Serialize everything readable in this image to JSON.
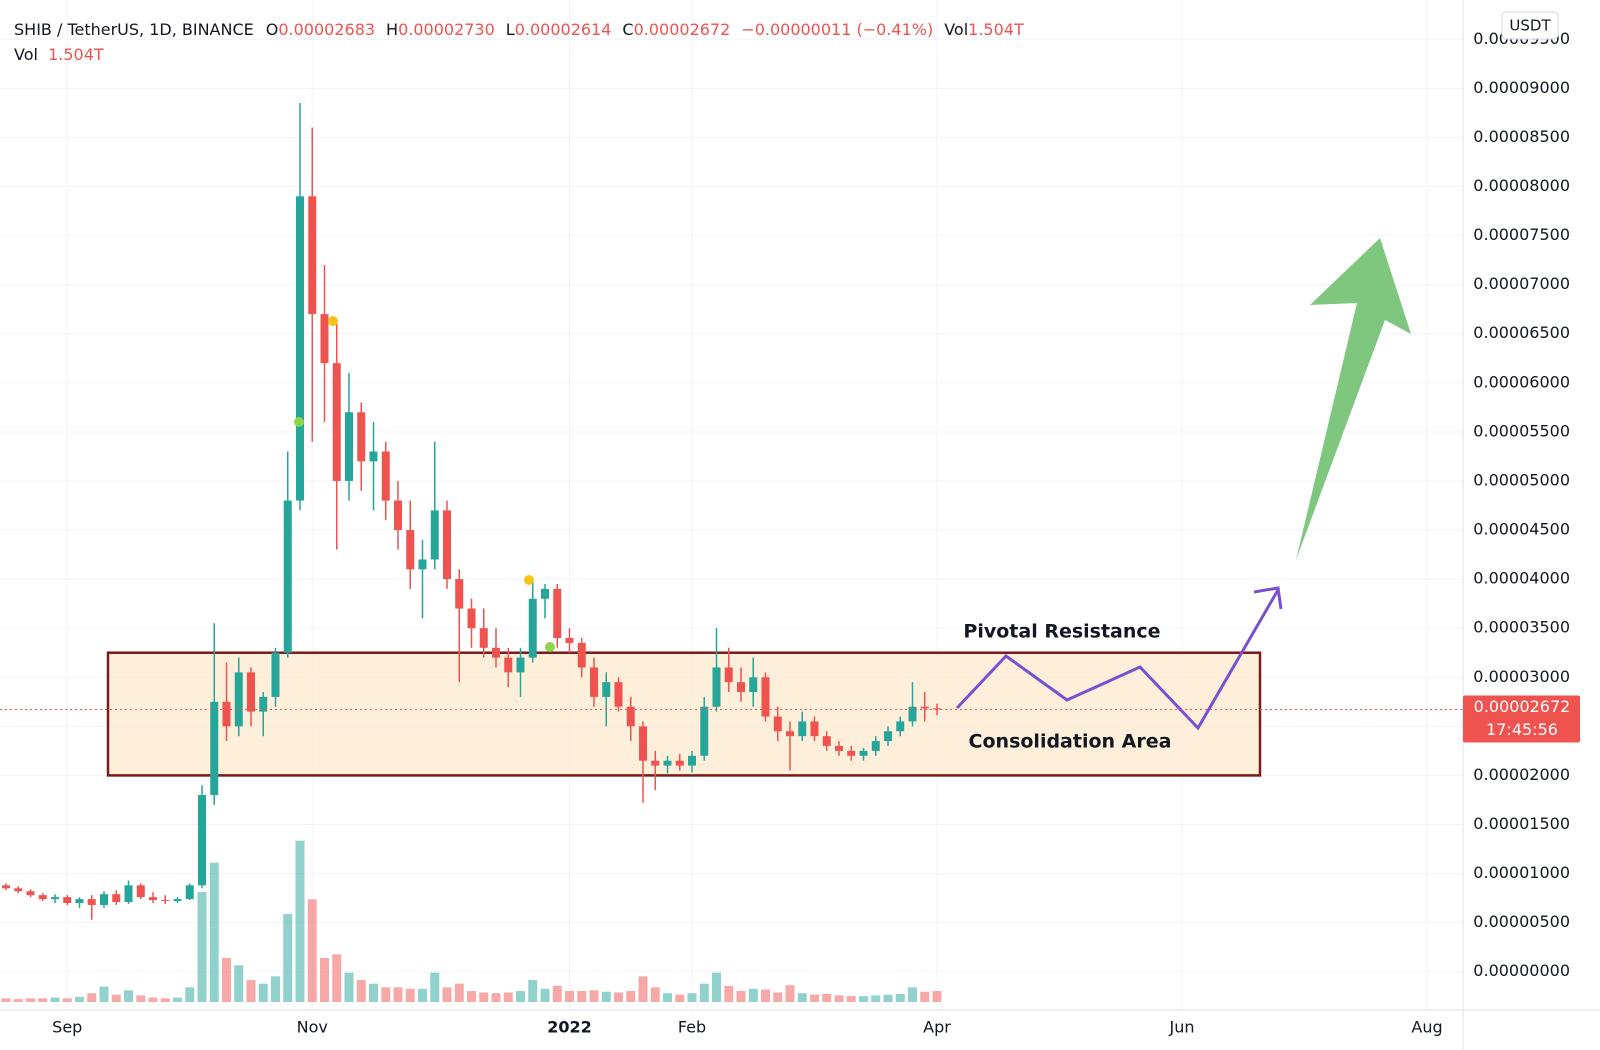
{
  "header": {
    "symbol": "SHIB / TetherUS, 1D, BINANCE",
    "fields": [
      {
        "label": "O",
        "value": "0.00002683"
      },
      {
        "label": "H",
        "value": "0.00002730"
      },
      {
        "label": "L",
        "value": "0.00002614"
      },
      {
        "label": "C",
        "value": "0.00002672"
      }
    ],
    "change": "−0.00000011 (−0.41%)",
    "volume_label": "Vol",
    "volume": "1.504T",
    "volume_legend": {
      "label": "Vol",
      "value": "1.504T"
    }
  },
  "chart_data": {
    "type": "candlestick",
    "categories": [
      null,
      null,
      null,
      null,
      null,
      "Sep",
      null,
      null,
      null,
      null,
      null,
      null,
      null,
      null,
      null,
      null,
      null,
      null,
      null,
      null,
      null,
      null,
      null,
      null,
      null,
      "Nov",
      null,
      null,
      null,
      null,
      null,
      null,
      null,
      null,
      null,
      null,
      null,
      null,
      null,
      null,
      null,
      null,
      null,
      null,
      null,
      null,
      "2022",
      null,
      null,
      null,
      null,
      null,
      null,
      null,
      null,
      null,
      "Feb",
      null,
      null,
      null,
      null,
      null,
      null,
      null,
      null,
      null,
      null,
      null,
      null,
      null,
      null,
      null,
      null,
      null,
      null,
      null,
      "Apr",
      null,
      null,
      null,
      null,
      null,
      null,
      null,
      null,
      null,
      null,
      null,
      null,
      null,
      null,
      null,
      null,
      null,
      null,
      null,
      "Jun",
      null,
      null,
      null,
      null,
      null,
      null,
      null,
      null,
      null,
      null,
      null,
      null,
      null,
      null,
      null,
      null,
      null,
      null,
      null,
      "Aug",
      null,
      null
    ],
    "open": [
      8.8e-06,
      8.5e-06,
      8.2e-06,
      7.8e-06,
      7.4e-06,
      7.6e-06,
      7e-06,
      7.4e-06,
      6.8e-06,
      7.9e-06,
      7.1e-06,
      8.8e-06,
      7.6e-06,
      7.3e-06,
      7.2e-06,
      7.4e-06,
      8.8e-06,
      1.8e-05,
      2.75e-05,
      2.5e-05,
      3.05e-05,
      2.65e-05,
      2.8e-05,
      3.25e-05,
      4.8e-05,
      7.9e-05,
      6.7e-05,
      6.2e-05,
      5e-05,
      5.7e-05,
      5.2e-05,
      5.3e-05,
      4.8e-05,
      4.5e-05,
      4.1e-05,
      4.2e-05,
      4.7e-05,
      4e-05,
      3.7e-05,
      3.5e-05,
      3.3e-05,
      3.2e-05,
      3.05e-05,
      3.2e-05,
      3.8e-05,
      3.9e-05,
      3.4e-05,
      3.35e-05,
      3.1e-05,
      2.8e-05,
      2.95e-05,
      2.7e-05,
      2.5e-05,
      2.15e-05,
      2.1e-05,
      2.15e-05,
      2.1e-05,
      2.2e-05,
      2.7e-05,
      3.1e-05,
      2.95e-05,
      2.85e-05,
      3e-05,
      2.6e-05,
      2.45e-05,
      2.4e-05,
      2.55e-05,
      2.4e-05,
      2.3e-05,
      2.25e-05,
      2.2e-05,
      2.25e-05,
      2.35e-05,
      2.45e-05,
      2.55e-05,
      2.7e-05,
      2.683e-05,
      null,
      null,
      null,
      null,
      null,
      null,
      null,
      null,
      null,
      null,
      null,
      null,
      null,
      null,
      null,
      null,
      null,
      null,
      null,
      null,
      null,
      null,
      null,
      null,
      null,
      null,
      null,
      null,
      null,
      null,
      null,
      null,
      null,
      null,
      null,
      null,
      null,
      null,
      null,
      null,
      null,
      null
    ],
    "high": [
      9e-06,
      8.7e-06,
      8.4e-06,
      8e-06,
      7.9e-06,
      7.8e-06,
      7.6e-06,
      7.8e-06,
      8.2e-06,
      8.3e-06,
      9.3e-06,
      9e-06,
      8.1e-06,
      7.8e-06,
      7.6e-06,
      9e-06,
      1.9e-05,
      3.55e-05,
      3.15e-05,
      3.2e-05,
      3.1e-05,
      2.85e-05,
      3.3e-05,
      5.3e-05,
      8.85e-05,
      8.6e-05,
      7.2e-05,
      6.6e-05,
      6.1e-05,
      5.8e-05,
      5.6e-05,
      5.4e-05,
      5e-05,
      4.8e-05,
      4.4e-05,
      5.4e-05,
      4.8e-05,
      4.1e-05,
      3.8e-05,
      3.7e-05,
      3.5e-05,
      3.3e-05,
      3.3e-05,
      4e-05,
      3.95e-05,
      3.95e-05,
      3.5e-05,
      3.4e-05,
      3.2e-05,
      3.05e-05,
      3e-05,
      2.8e-05,
      2.55e-05,
      2.25e-05,
      2.2e-05,
      2.22e-05,
      2.25e-05,
      2.8e-05,
      3.5e-05,
      3.3e-05,
      3.1e-05,
      3.2e-05,
      3.05e-05,
      2.7e-05,
      2.55e-05,
      2.65e-05,
      2.6e-05,
      2.45e-05,
      2.35e-05,
      2.3e-05,
      2.28e-05,
      2.4e-05,
      2.5e-05,
      2.6e-05,
      2.95e-05,
      2.85e-05,
      2.73e-05,
      null,
      null,
      null,
      null,
      null,
      null,
      null,
      null,
      null,
      null,
      null,
      null,
      null,
      null,
      null,
      null,
      null,
      null,
      null,
      null,
      null,
      null,
      null,
      null,
      null,
      null,
      null,
      null,
      null,
      null,
      null,
      null,
      null,
      null,
      null,
      null,
      null,
      null,
      null,
      null,
      null,
      null
    ],
    "low": [
      8.3e-06,
      8e-06,
      7.6e-06,
      7.2e-06,
      7e-06,
      6.8e-06,
      6.5e-06,
      5.3e-06,
      6.5e-06,
      6.8e-06,
      6.9e-06,
      7.4e-06,
      7e-06,
      6.9e-06,
      7e-06,
      7.3e-06,
      8.5e-06,
      1.7e-05,
      2.35e-05,
      2.4e-05,
      2.5e-05,
      2.4e-05,
      2.7e-05,
      3.2e-05,
      4.7e-05,
      5.4e-05,
      5.6e-05,
      4.3e-05,
      4.8e-05,
      4.9e-05,
      4.7e-05,
      4.6e-05,
      4.3e-05,
      3.9e-05,
      3.6e-05,
      4.1e-05,
      3.9e-05,
      2.95e-05,
      3.3e-05,
      3.2e-05,
      3.1e-05,
      2.9e-05,
      2.8e-05,
      3.15e-05,
      3.6e-05,
      3.3e-05,
      3.25e-05,
      3e-05,
      2.7e-05,
      2.5e-05,
      2.65e-05,
      2.35e-05,
      1.72e-05,
      1.85e-05,
      2.02e-05,
      2.05e-05,
      2.03e-05,
      2.15e-05,
      2.65e-05,
      2.85e-05,
      2.75e-05,
      2.7e-05,
      2.55e-05,
      2.35e-05,
      2.05e-05,
      2.35e-05,
      2.35e-05,
      2.25e-05,
      2.2e-05,
      2.15e-05,
      2.15e-05,
      2.2e-05,
      2.3e-05,
      2.4e-05,
      2.5e-05,
      2.55e-05,
      2.614e-05,
      null,
      null,
      null,
      null,
      null,
      null,
      null,
      null,
      null,
      null,
      null,
      null,
      null,
      null,
      null,
      null,
      null,
      null,
      null,
      null,
      null,
      null,
      null,
      null,
      null,
      null,
      null,
      null,
      null,
      null,
      null,
      null,
      null,
      null,
      null,
      null,
      null,
      null,
      null,
      null,
      null,
      null
    ],
    "close": [
      8.5e-06,
      8.2e-06,
      7.8e-06,
      7.4e-06,
      7.6e-06,
      7e-06,
      7.4e-06,
      6.8e-06,
      7.9e-06,
      7.1e-06,
      8.8e-06,
      7.6e-06,
      7.3e-06,
      7.2e-06,
      7.4e-06,
      8.8e-06,
      1.8e-05,
      2.75e-05,
      2.5e-05,
      3.05e-05,
      2.65e-05,
      2.8e-05,
      3.25e-05,
      4.8e-05,
      7.9e-05,
      6.7e-05,
      6.2e-05,
      5e-05,
      5.7e-05,
      5.2e-05,
      5.3e-05,
      4.8e-05,
      4.5e-05,
      4.1e-05,
      4.2e-05,
      4.7e-05,
      4e-05,
      3.7e-05,
      3.5e-05,
      3.3e-05,
      3.2e-05,
      3.05e-05,
      3.2e-05,
      3.8e-05,
      3.9e-05,
      3.4e-05,
      3.35e-05,
      3.1e-05,
      2.8e-05,
      2.95e-05,
      2.7e-05,
      2.5e-05,
      2.15e-05,
      2.1e-05,
      2.15e-05,
      2.1e-05,
      2.2e-05,
      2.7e-05,
      3.1e-05,
      2.95e-05,
      2.85e-05,
      3e-05,
      2.6e-05,
      2.45e-05,
      2.4e-05,
      2.55e-05,
      2.4e-05,
      2.3e-05,
      2.25e-05,
      2.2e-05,
      2.25e-05,
      2.35e-05,
      2.45e-05,
      2.55e-05,
      2.7e-05,
      2.683e-05,
      2.672e-05,
      null,
      null,
      null,
      null,
      null,
      null,
      null,
      null,
      null,
      null,
      null,
      null,
      null,
      null,
      null,
      null,
      null,
      null,
      null,
      null,
      null,
      null,
      null,
      null,
      null,
      null,
      null,
      null,
      null,
      null,
      null,
      null,
      null,
      null,
      null,
      null,
      null,
      null,
      null,
      null,
      null,
      null
    ],
    "volume": [
      0.5,
      0.4,
      0.5,
      0.5,
      0.6,
      0.5,
      0.7,
      1.2,
      2.1,
      1.0,
      1.6,
      0.9,
      0.6,
      0.5,
      0.6,
      2.0,
      15,
      19,
      6,
      5,
      3,
      2.5,
      3.5,
      12,
      22,
      14,
      6,
      6.5,
      4,
      3,
      2.5,
      2,
      2,
      1.8,
      1.8,
      4,
      2,
      2.5,
      1.5,
      1.3,
      1.2,
      1.3,
      1.5,
      3,
      1.8,
      2.2,
      1.5,
      1.5,
      1.6,
      1.4,
      1.3,
      1.5,
      3.5,
      2,
      1.2,
      1,
      1.2,
      2.5,
      4,
      2.2,
      1.5,
      1.8,
      1.7,
      1.3,
      2.3,
      1.2,
      1,
      1.1,
      0.9,
      0.8,
      0.8,
      0.9,
      1,
      1.1,
      2,
      1.4,
      1.504,
      null,
      null,
      null,
      null,
      null,
      null,
      null,
      null,
      null,
      null,
      null,
      null,
      null,
      null,
      null,
      null,
      null,
      null,
      null,
      null,
      null,
      null,
      null,
      null,
      null,
      null,
      null,
      null,
      null,
      null,
      null,
      null,
      null,
      null,
      null,
      null,
      null,
      null,
      null,
      null,
      null,
      null
    ],
    "volume_lim": [
      0,
      30
    ],
    "up_color": "#26a69a",
    "down_color": "#ef5350",
    "ylim": [
      -3.9e-06,
      9.9e-05
    ],
    "yticks": [
      {
        "value": 0,
        "label": "0.00000000"
      },
      {
        "value": 5e-06,
        "label": "0.00000500"
      },
      {
        "value": 1e-05,
        "label": "0.00001000"
      },
      {
        "value": 1.5e-05,
        "label": "0.00001500"
      },
      {
        "value": 2e-05,
        "label": "0.00002000"
      },
      {
        "value": 2.5e-05,
        "label": "0.00002500"
      },
      {
        "value": 3e-05,
        "label": "0.00003000"
      },
      {
        "value": 3.5e-05,
        "label": "0.00003500"
      },
      {
        "value": 4e-05,
        "label": "0.00004000"
      },
      {
        "value": 4.5e-05,
        "label": "0.00004500"
      },
      {
        "value": 5e-05,
        "label": "0.00005000"
      },
      {
        "value": 5.5e-05,
        "label": "0.00005500"
      },
      {
        "value": 6e-05,
        "label": "0.00006000"
      },
      {
        "value": 6.5e-05,
        "label": "0.00006500"
      },
      {
        "value": 7e-05,
        "label": "0.00007000"
      },
      {
        "value": 7.5e-05,
        "label": "0.00007500"
      },
      {
        "value": 8e-05,
        "label": "0.00008000"
      },
      {
        "value": 8.5e-05,
        "label": "0.00008500"
      },
      {
        "value": 9e-05,
        "label": "0.00009000"
      },
      {
        "value": 9.5e-05,
        "label": "0.00009500"
      }
    ],
    "grid": true,
    "currency": "USDT",
    "countdown": "17:45:56",
    "annotations": {
      "resistance_label": "Pivotal Resistance",
      "zone": {
        "label": "Consolidation Area",
        "ylim": [
          2e-05,
          3.25e-05
        ]
      }
    }
  }
}
